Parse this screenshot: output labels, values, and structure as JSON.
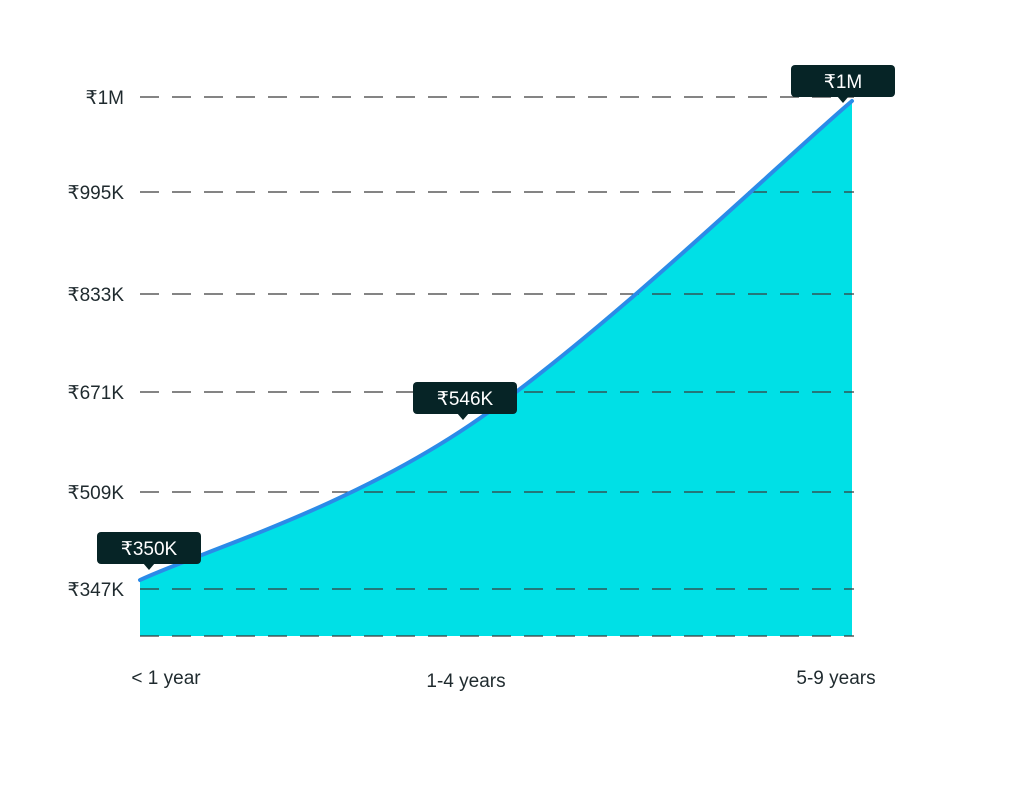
{
  "chart_data": {
    "type": "area",
    "categories": [
      "< 1 year",
      "1-4 years",
      "5-9 years"
    ],
    "values": [
      350000,
      546000,
      1000000
    ],
    "value_labels": [
      "₹350K",
      "₹546K",
      "₹1M"
    ],
    "y_ticks": [
      {
        "value": 347000,
        "label": "₹347K"
      },
      {
        "value": 509000,
        "label": "₹509K"
      },
      {
        "value": 671000,
        "label": "₹671K"
      },
      {
        "value": 833000,
        "label": "₹833K"
      },
      {
        "value": 995000,
        "label": "₹995K"
      },
      {
        "value": 1000000,
        "label": "₹1M"
      }
    ],
    "grid": true,
    "grid_style": "dashed",
    "title": "",
    "xlabel": "",
    "ylabel": "",
    "colors": {
      "fill": "#00e0e6",
      "line": "#2b8be8",
      "grid": "#3a3a3a",
      "callout_bg": "#062426",
      "callout_text": "#ffffff",
      "label_text": "#1f2a2e"
    }
  }
}
